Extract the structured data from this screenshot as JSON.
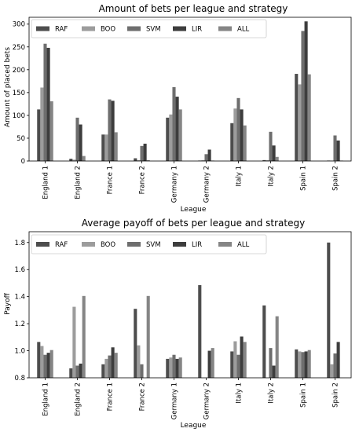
{
  "chart_data": [
    {
      "type": "bar",
      "title": "Amount of bets per league and strategy",
      "xlabel": "League",
      "ylabel": "Amount of placed bets",
      "categories": [
        "England 1",
        "England 2",
        "France 1",
        "France 2",
        "Germany 1",
        "Germany 2",
        "Italy 1",
        "Italy 2",
        "Spain 1",
        "Spain 2"
      ],
      "ylim": [
        0,
        315
      ],
      "yticks": [
        0,
        50,
        100,
        150,
        200,
        250,
        300
      ],
      "ytick_labels": [
        "0",
        "50",
        "100",
        "150",
        "200",
        "250",
        "300"
      ],
      "grid": false,
      "legend": "top-left",
      "series": [
        {
          "name": "RAF",
          "color": "#4d4d4d",
          "values": [
            113,
            5,
            58,
            6,
            95,
            1,
            83,
            2,
            191,
            1
          ]
        },
        {
          "name": "BOO",
          "color": "#9c9c9c",
          "values": [
            161,
            3,
            58,
            2,
            102,
            2,
            115,
            2,
            168,
            1
          ]
        },
        {
          "name": "SVM",
          "color": "#6e6e6e",
          "values": [
            257,
            95,
            135,
            33,
            162,
            15,
            138,
            64,
            285,
            56
          ]
        },
        {
          "name": "LIR",
          "color": "#3d3d3d",
          "values": [
            248,
            80,
            132,
            38,
            141,
            25,
            113,
            34,
            306,
            45
          ]
        },
        {
          "name": "ALL",
          "color": "#858585",
          "values": [
            131,
            11,
            63,
            2,
            113,
            1,
            78,
            9,
            190,
            1
          ]
        }
      ]
    },
    {
      "type": "bar",
      "title": "Average payoff of bets per league and strategy",
      "xlabel": "League",
      "ylabel": "Payoff",
      "categories": [
        "England 1",
        "England 2",
        "France 1",
        "France 2",
        "Germany 1",
        "Germany 2",
        "Italy 1",
        "Italy 2",
        "Spain 1",
        "Spain 2"
      ],
      "ylim": [
        0.8,
        1.88
      ],
      "yticks": [
        0.8,
        1.0,
        1.2,
        1.4,
        1.6,
        1.8
      ],
      "ytick_labels": [
        "0.8",
        "1.0",
        "1.2",
        "1.4",
        "1.6",
        "1.8"
      ],
      "grid": false,
      "legend": "top-left",
      "series": [
        {
          "name": "RAF",
          "color": "#4d4d4d",
          "values": [
            1.065,
            0.87,
            0.9,
            1.31,
            0.94,
            1.485,
            0.995,
            1.335,
            1.01,
            1.8
          ]
        },
        {
          "name": "BOO",
          "color": "#9c9c9c",
          "values": [
            1.035,
            1.325,
            0.94,
            1.04,
            0.95,
            0.8,
            1.07,
            0.8,
            0.995,
            0.9
          ]
        },
        {
          "name": "SVM",
          "color": "#6e6e6e",
          "values": [
            0.97,
            0.89,
            0.965,
            0.9,
            0.97,
            0.8,
            0.97,
            1.02,
            0.99,
            0.98
          ]
        },
        {
          "name": "LIR",
          "color": "#3d3d3d",
          "values": [
            0.985,
            0.905,
            1.025,
            0.8,
            0.94,
            1.0,
            1.105,
            0.89,
            0.995,
            1.065
          ]
        },
        {
          "name": "ALL",
          "color": "#858585",
          "values": [
            1.005,
            1.405,
            0.985,
            1.405,
            0.95,
            1.02,
            1.065,
            1.255,
            1.005,
            0.8
          ]
        }
      ]
    }
  ]
}
